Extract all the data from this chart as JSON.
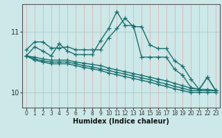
{
  "xlabel": "Humidex (Indice chaleur)",
  "bg_color": "#cce8e8",
  "vgrid_color": "#e8b0b0",
  "hgrid_color": "#a8cccc",
  "line_color": "#1a6e6e",
  "x": [
    0,
    1,
    2,
    3,
    4,
    5,
    6,
    7,
    8,
    9,
    10,
    11,
    12,
    13,
    14,
    15,
    16,
    17,
    18,
    19,
    20,
    21,
    22,
    23
  ],
  "lines": [
    [
      10.7,
      10.83,
      10.83,
      10.73,
      10.73,
      10.75,
      10.7,
      10.7,
      10.7,
      10.7,
      10.9,
      11.05,
      11.22,
      11.08,
      11.08,
      10.78,
      10.72,
      10.72,
      10.52,
      10.43,
      10.22,
      10.05,
      10.25,
      10.03
    ],
    [
      10.6,
      10.75,
      10.68,
      10.6,
      10.8,
      10.68,
      10.62,
      10.62,
      10.62,
      10.85,
      11.05,
      11.33,
      11.1,
      11.1,
      10.58,
      10.58,
      10.58,
      10.58,
      10.38,
      10.28,
      10.08,
      10.05,
      10.25,
      10.03
    ],
    [
      10.6,
      10.58,
      10.55,
      10.53,
      10.53,
      10.53,
      10.5,
      10.48,
      10.46,
      10.44,
      10.4,
      10.37,
      10.34,
      10.31,
      10.28,
      10.25,
      10.22,
      10.19,
      10.15,
      10.11,
      10.07,
      10.05,
      10.05,
      10.03
    ],
    [
      10.6,
      10.55,
      10.52,
      10.5,
      10.5,
      10.5,
      10.47,
      10.44,
      10.42,
      10.39,
      10.36,
      10.33,
      10.3,
      10.27,
      10.24,
      10.21,
      10.17,
      10.14,
      10.1,
      10.07,
      10.03,
      10.03,
      10.03,
      10.03
    ],
    [
      10.6,
      10.53,
      10.5,
      10.47,
      10.47,
      10.47,
      10.44,
      10.41,
      10.39,
      10.36,
      10.32,
      10.29,
      10.26,
      10.23,
      10.2,
      10.17,
      10.13,
      10.1,
      10.06,
      10.03,
      10.0,
      10.0,
      10.0,
      10.0
    ]
  ],
  "ylim": [
    9.75,
    11.45
  ],
  "yticks": [
    10,
    11
  ],
  "xticks": [
    0,
    1,
    2,
    3,
    4,
    5,
    6,
    7,
    8,
    9,
    10,
    11,
    12,
    13,
    14,
    15,
    16,
    17,
    18,
    19,
    20,
    21,
    22,
    23
  ],
  "marker": "+",
  "markersize": 4,
  "linewidth": 1.0
}
